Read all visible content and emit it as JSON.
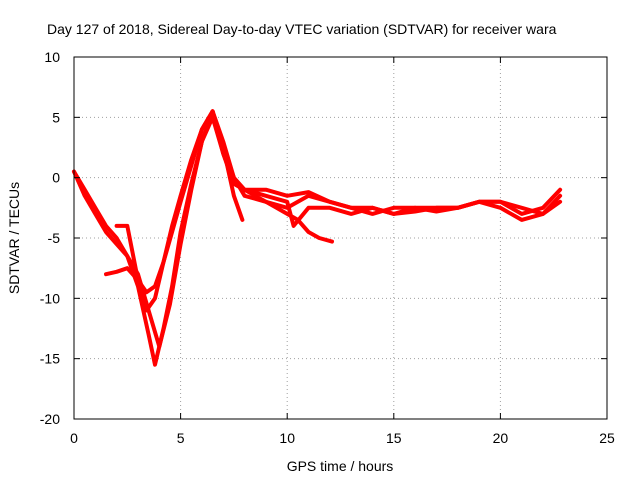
{
  "chart_data": {
    "type": "line",
    "title": "Day 127 of 2018, Sidereal Day-to-day VTEC variation (SDTVAR) for receiver wara",
    "xlabel": "GPS time / hours",
    "ylabel": "SDTVAR / TECUs",
    "xlim": [
      0,
      25
    ],
    "ylim": [
      -20,
      10
    ],
    "xticks": [
      0,
      5,
      10,
      15,
      20,
      25
    ],
    "yticks": [
      10,
      5,
      0,
      -5,
      -10,
      -15,
      -20
    ],
    "grid": true,
    "series_color": "#ff0000",
    "series": [
      {
        "name": "track-1",
        "x": [
          0.0,
          0.5,
          1.0,
          1.5,
          2.0,
          2.5,
          3.0,
          3.5,
          3.8,
          4.2,
          4.6,
          5.0,
          5.5,
          6.0,
          6.5,
          7.0,
          7.5,
          7.9
        ],
        "y": [
          0.5,
          -1.0,
          -2.5,
          -4.0,
          -5.0,
          -6.5,
          -9.0,
          -13.0,
          -15.5,
          -12.5,
          -9.0,
          -4.5,
          -0.5,
          3.0,
          5.5,
          2.5,
          -1.5,
          -3.5
        ]
      },
      {
        "name": "track-2",
        "x": [
          0.0,
          0.5,
          1.0,
          1.5,
          2.0,
          2.5,
          3.0,
          3.5,
          4.0,
          4.5,
          5.0,
          5.5,
          6.0,
          6.5,
          7.0,
          7.5,
          8.0,
          9.0,
          10.0,
          11.0,
          12.0,
          13.0,
          14.0,
          15.0,
          16.0,
          17.0,
          18.0,
          19.0,
          20.0,
          21.0,
          22.0,
          22.8
        ],
        "y": [
          0.5,
          -1.5,
          -3.0,
          -4.5,
          -5.5,
          -6.5,
          -8.0,
          -11.0,
          -14.0,
          -10.5,
          -5.5,
          -1.0,
          3.0,
          5.0,
          2.0,
          -0.5,
          -1.0,
          -1.0,
          -1.5,
          -1.2,
          -2.0,
          -2.5,
          -2.5,
          -3.0,
          -2.5,
          -2.5,
          -2.5,
          -2.0,
          -2.0,
          -3.0,
          -2.5,
          -1.0
        ]
      },
      {
        "name": "track-3",
        "x": [
          1.5,
          2.0,
          2.5,
          3.0,
          3.4,
          3.8,
          4.2,
          4.6,
          5.0,
          5.5,
          6.0,
          6.5,
          7.0,
          7.5,
          8.0,
          9.0,
          10.0,
          11.0,
          12.0,
          13.0,
          14.0,
          15.0,
          16.0,
          17.0,
          18.0,
          19.0,
          20.0,
          21.0,
          22.0,
          22.8
        ],
        "y": [
          -8.0,
          -7.8,
          -7.5,
          -8.5,
          -9.5,
          -9.0,
          -7.0,
          -4.5,
          -2.0,
          1.0,
          4.0,
          5.5,
          3.0,
          0.0,
          -1.5,
          -2.0,
          -2.5,
          -1.5,
          -2.0,
          -2.5,
          -3.0,
          -2.5,
          -2.5,
          -2.8,
          -2.5,
          -2.0,
          -2.0,
          -2.5,
          -3.0,
          -2.0
        ]
      },
      {
        "name": "track-4",
        "x": [
          6.5,
          7.0,
          7.5,
          8.0,
          8.5,
          9.0,
          9.5,
          10.0,
          10.5,
          11.0,
          11.5,
          12.1
        ],
        "y": [
          5.5,
          2.0,
          -0.5,
          -1.0,
          -1.5,
          -2.0,
          -2.5,
          -3.0,
          -3.5,
          -4.5,
          -5.0,
          -5.3
        ]
      },
      {
        "name": "track-5",
        "x": [
          2.0,
          2.5,
          3.0,
          3.4,
          3.8,
          4.2,
          4.6,
          5.0,
          5.5,
          6.0,
          6.5,
          7.0,
          7.5,
          8.0,
          9.0,
          10.0,
          10.3,
          11.0,
          12.0,
          13.0,
          14.0,
          15.0,
          16.0,
          17.0,
          18.0,
          19.0,
          20.0,
          21.0,
          22.0,
          22.8
        ],
        "y": [
          -4.0,
          -4.0,
          -8.5,
          -11.0,
          -10.0,
          -7.0,
          -4.0,
          -1.5,
          1.5,
          4.0,
          5.5,
          2.5,
          0.0,
          -1.0,
          -1.5,
          -2.0,
          -4.0,
          -2.5,
          -2.5,
          -3.0,
          -2.5,
          -3.0,
          -2.8,
          -2.5,
          -2.5,
          -2.0,
          -2.5,
          -3.5,
          -3.0,
          -1.5
        ]
      }
    ]
  }
}
